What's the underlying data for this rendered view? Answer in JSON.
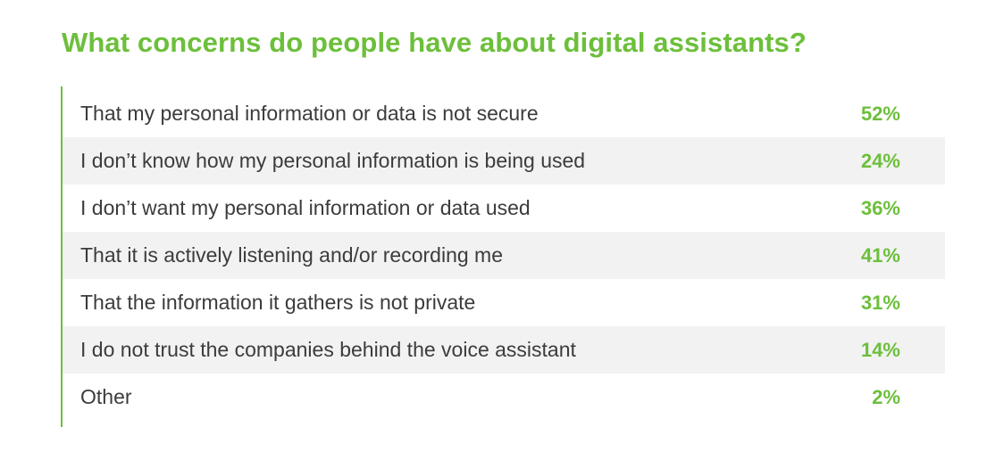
{
  "chart_data": {
    "type": "table",
    "title": "What concerns do people have about digital assistants?",
    "rows": [
      {
        "label": "That my personal information or data is not secure",
        "value": "52%"
      },
      {
        "label": "I don’t know how my personal information is being used",
        "value": "24%"
      },
      {
        "label": "I don’t want my personal information or data used",
        "value": "36%"
      },
      {
        "label": "That it is actively listening and/or recording me",
        "value": "41%"
      },
      {
        "label": "That the information it gathers is not private",
        "value": "31%"
      },
      {
        "label": "I do not trust the companies behind the voice assistant",
        "value": "14%"
      },
      {
        "label": "Other",
        "value": "2%"
      }
    ],
    "colors": {
      "accent": "#6cbf3b",
      "row_shade": "#f2f2f2",
      "text": "#3c3c3c"
    }
  }
}
